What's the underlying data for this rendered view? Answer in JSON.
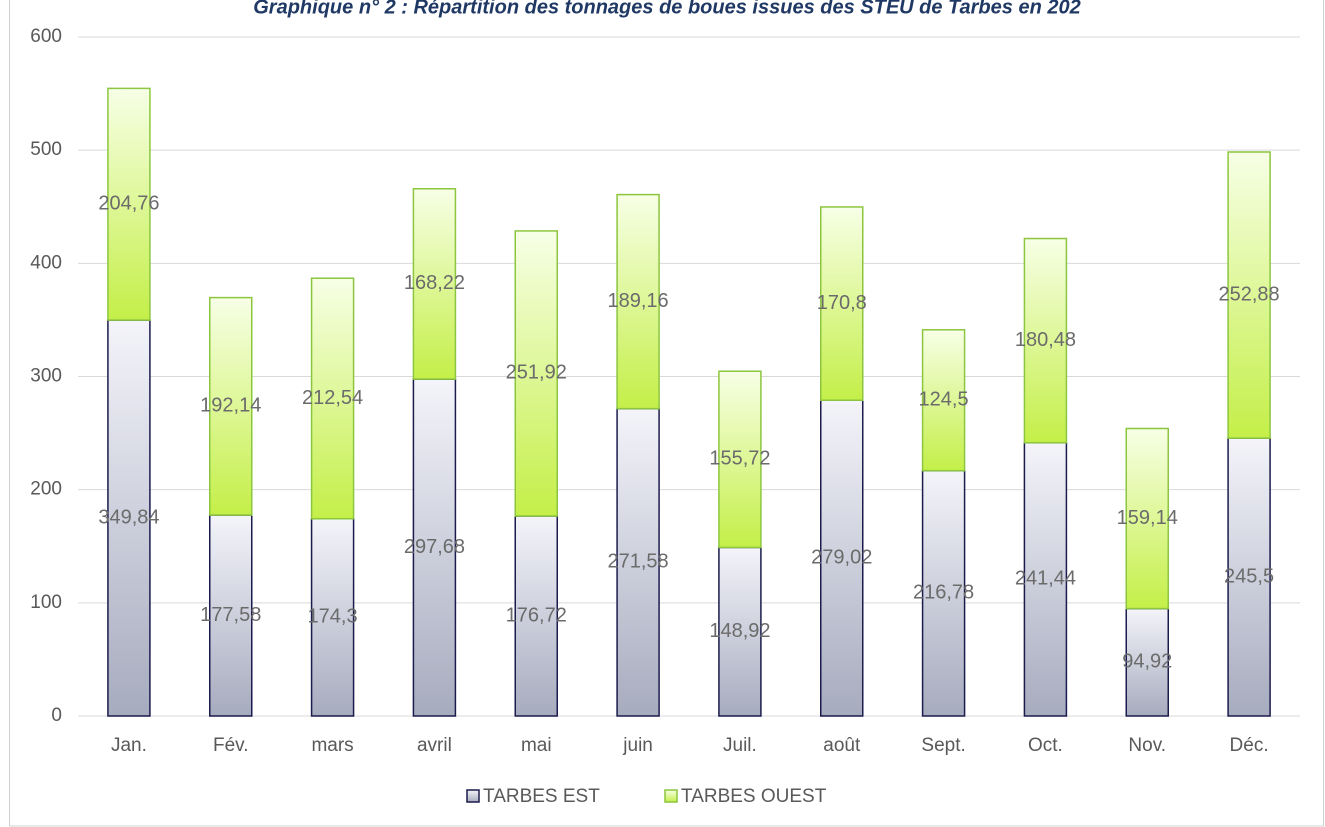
{
  "chart_data": {
    "type": "stacked_bar",
    "title": "Graphique n° 2 : Répartition des tonnages de boues issues des STEU de Tarbes en 202",
    "categories": [
      "Jan.",
      "Fév.",
      "mars",
      "avril",
      "mai",
      "juin",
      "Juil.",
      "août",
      "Sept.",
      "Oct.",
      "Nov.",
      "Déc."
    ],
    "series": [
      {
        "name": "TARBES EST",
        "color": "#a6abbe",
        "values": [
          349.84,
          177.58,
          174.3,
          297.68,
          176.72,
          271.58,
          148.92,
          279.02,
          216.78,
          241.44,
          94.92,
          245.5
        ],
        "value_labels": [
          "349,84",
          "177,58",
          "174,3",
          "297,68",
          "176,72",
          "271,58",
          "148,92",
          "279,02",
          "216,78",
          "241,44",
          "94,92",
          "245,5"
        ]
      },
      {
        "name": "TARBES OUEST",
        "color": "#c4ef48",
        "values": [
          204.76,
          192.14,
          212.54,
          168.22,
          251.92,
          189.16,
          155.72,
          170.8,
          124.5,
          180.48,
          159.14,
          252.88
        ],
        "value_labels": [
          "204,76",
          "192,14",
          "212,54",
          "168,22",
          "251,92",
          "189,16",
          "155,72",
          "170,8",
          "124,5",
          "180,48",
          "159,14",
          "252,88"
        ]
      }
    ],
    "ylim": [
      0,
      600
    ],
    "yticks": [
      0,
      100,
      200,
      300,
      400,
      500,
      600
    ],
    "grid": true,
    "legend": "bottom"
  }
}
